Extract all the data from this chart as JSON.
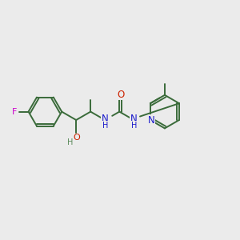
{
  "bg": "#ebebeb",
  "bc": "#3a6b3a",
  "Fc": "#cc00cc",
  "Oc": "#cc2200",
  "Nc": "#1a1acc",
  "OHc": "#5a8a5a",
  "figsize": [
    3.0,
    3.0
  ],
  "dpi": 100,
  "LW": 1.4,
  "xlim": [
    0.0,
    10.0
  ],
  "ylim": [
    0.0,
    10.0
  ]
}
